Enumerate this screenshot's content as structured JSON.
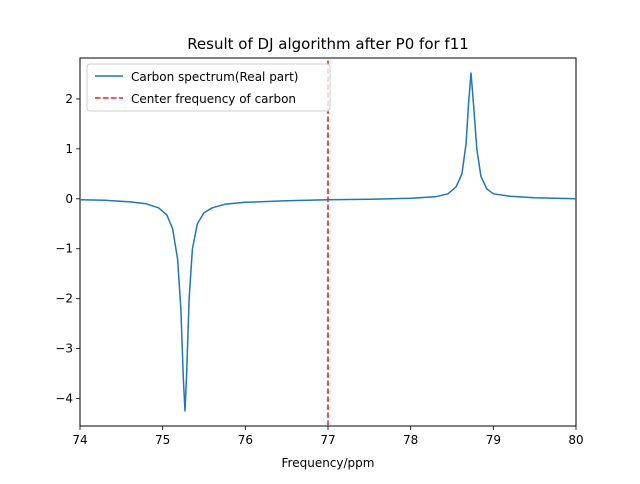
{
  "chart_data": {
    "type": "line",
    "title": "Result of DJ algorithm after P0 for f11",
    "xlabel": "Frequency/ppm",
    "ylabel": "",
    "xlim": [
      74,
      80
    ],
    "ylim": [
      -4.55,
      2.82
    ],
    "xticks": [
      74,
      75,
      76,
      77,
      78,
      79,
      80
    ],
    "yticks": [
      -4,
      -3,
      -2,
      -1,
      0,
      1,
      2
    ],
    "xtick_labels": [
      "74",
      "75",
      "76",
      "77",
      "78",
      "79",
      "80"
    ],
    "ytick_labels": [
      "−4",
      "−3",
      "−2",
      "−1",
      "0",
      "1",
      "2"
    ],
    "grid": false,
    "legend_position": "upper-left",
    "series": [
      {
        "name": "Carbon spectrum(Real part)",
        "style": "solid",
        "color": "#1f77b4",
        "x": [
          74.0,
          74.3,
          74.6,
          74.8,
          74.95,
          75.05,
          75.12,
          75.18,
          75.22,
          75.25,
          75.27,
          75.29,
          75.32,
          75.36,
          75.42,
          75.5,
          75.6,
          75.75,
          76.0,
          76.5,
          77.0,
          77.5,
          78.0,
          78.3,
          78.45,
          78.55,
          78.62,
          78.67,
          78.7,
          78.73,
          78.76,
          78.8,
          78.85,
          78.92,
          79.0,
          79.2,
          79.5,
          80.0
        ],
        "y": [
          -0.02,
          -0.03,
          -0.06,
          -0.1,
          -0.18,
          -0.32,
          -0.6,
          -1.2,
          -2.2,
          -3.6,
          -4.25,
          -3.5,
          -2.0,
          -1.0,
          -0.5,
          -0.28,
          -0.18,
          -0.11,
          -0.07,
          -0.04,
          -0.02,
          -0.01,
          0.01,
          0.04,
          0.1,
          0.24,
          0.5,
          1.1,
          1.9,
          2.52,
          1.9,
          1.0,
          0.45,
          0.2,
          0.1,
          0.05,
          0.02,
          0.0
        ]
      },
      {
        "name": "Center frequency of carbon",
        "style": "dashed",
        "color": "#d62728",
        "x": [
          77,
          77
        ],
        "y": [
          -4.55,
          2.82
        ]
      }
    ]
  }
}
